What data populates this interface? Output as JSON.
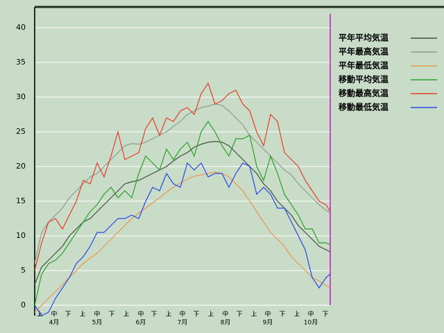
{
  "chart_data": {
    "type": "line",
    "x": [
      0,
      5,
      10,
      15,
      20,
      25,
      30,
      35,
      40,
      45,
      50,
      55,
      60,
      65,
      70,
      75,
      80,
      85,
      90,
      95,
      100,
      105,
      110,
      115,
      120,
      125,
      130,
      135,
      140,
      145,
      150,
      155,
      160,
      165,
      170,
      175,
      180,
      185,
      190,
      195,
      200,
      205,
      210,
      213
    ],
    "series": [
      {
        "name": "平年平均気温",
        "color": "#3c503c",
        "values": [
          3,
          5.5,
          6.5,
          7.5,
          8.5,
          10,
          11,
          12,
          12.5,
          13.5,
          14.5,
          15.5,
          16.5,
          17.5,
          17.8,
          18,
          18.5,
          19,
          19.5,
          20,
          20.8,
          21.5,
          22,
          22.8,
          23.2,
          23.5,
          23.6,
          23.5,
          23,
          22,
          21,
          20,
          19,
          17.5,
          16.5,
          15,
          14,
          13,
          11.5,
          10.5,
          9.5,
          8.5,
          8,
          7.7
        ]
      },
      {
        "name": "平年最高気温",
        "color": "#8c9c8c",
        "values": [
          6,
          10.5,
          12,
          13,
          14,
          15.5,
          16.5,
          17.5,
          18.5,
          19,
          20,
          21,
          22,
          23,
          23.3,
          23.2,
          23.5,
          24,
          24.5,
          25,
          25.8,
          26.5,
          27.5,
          28,
          28.5,
          28.7,
          29,
          28.8,
          28,
          27,
          26,
          24.5,
          23.5,
          22.5,
          21.5,
          20.5,
          19.5,
          18.8,
          17.5,
          16.5,
          15.5,
          14.5,
          13.7,
          13.3
        ]
      },
      {
        "name": "平年最低気温",
        "color": "#e69650",
        "values": [
          -1,
          0,
          1,
          2,
          3,
          4,
          5,
          6,
          6.8,
          7.5,
          8.5,
          9.5,
          10.5,
          11.5,
          12.5,
          13.3,
          14,
          14.8,
          15.5,
          16.3,
          17,
          17.6,
          18.2,
          18.6,
          18.8,
          19,
          19.2,
          19,
          18.5,
          17.5,
          16.5,
          15,
          13.5,
          12,
          10.5,
          9.5,
          8.5,
          7,
          6,
          5,
          4,
          3.5,
          2.8,
          2.5
        ]
      },
      {
        "name": "移動平均気温",
        "color": "#28a028",
        "values": [
          0,
          4.5,
          6,
          6.5,
          7.5,
          9,
          10.5,
          12,
          13.5,
          14.5,
          16,
          17,
          15.5,
          16.5,
          15.5,
          19,
          21.5,
          20.5,
          19.5,
          22.5,
          21,
          22.5,
          23.5,
          21.5,
          25,
          26.5,
          25,
          23,
          21.5,
          24,
          24,
          24.5,
          20,
          18,
          21.5,
          19,
          16,
          14.5,
          13,
          11,
          11,
          9,
          9,
          8.7
        ]
      },
      {
        "name": "移動最高気温",
        "color": "#e63c28",
        "values": [
          5,
          9,
          12,
          12.5,
          11,
          13,
          15,
          18,
          17.5,
          20.5,
          18.5,
          21.5,
          25,
          21,
          21.5,
          22,
          25.5,
          27,
          24.5,
          27,
          26.5,
          28,
          28.5,
          27.5,
          30.5,
          32,
          29,
          29.5,
          30.5,
          31,
          29,
          28,
          25,
          23,
          27.5,
          26.5,
          22,
          21,
          20,
          18,
          16.5,
          15,
          14.5,
          13.5
        ]
      },
      {
        "name": "移動最低気温",
        "color": "#2846e6",
        "values": [
          0,
          -1.5,
          -1,
          1,
          2.5,
          4,
          6,
          7,
          8.5,
          10.5,
          10.5,
          11.5,
          12.5,
          12.5,
          13,
          12.5,
          15,
          17,
          16.5,
          19,
          17.5,
          17,
          20.5,
          19.5,
          20.5,
          18.5,
          19,
          19,
          17,
          19,
          20.5,
          20,
          16,
          17,
          16,
          14,
          14,
          12,
          10,
          8,
          4,
          2.5,
          4,
          4.5
        ]
      }
    ],
    "xlim": [
      0,
      214
    ],
    "ylim": [
      -1.5,
      43
    ],
    "yticks": [
      0,
      5,
      10,
      15,
      20,
      25,
      30,
      35,
      40
    ],
    "xticks": [
      {
        "value": 3.5,
        "label": "上"
      },
      {
        "value": 14,
        "label": "中"
      },
      {
        "value": 24,
        "label": "下"
      },
      {
        "value": 34.5,
        "label": "上"
      },
      {
        "value": 45,
        "label": "中"
      },
      {
        "value": 55.5,
        "label": "下"
      },
      {
        "value": 66,
        "label": "上"
      },
      {
        "value": 76.5,
        "label": "中"
      },
      {
        "value": 86,
        "label": "下"
      },
      {
        "value": 96.5,
        "label": "上"
      },
      {
        "value": 106.5,
        "label": "中"
      },
      {
        "value": 116.5,
        "label": "下"
      },
      {
        "value": 127,
        "label": "上"
      },
      {
        "value": 137.5,
        "label": "中"
      },
      {
        "value": 147.5,
        "label": "下"
      },
      {
        "value": 158,
        "label": "上"
      },
      {
        "value": 168,
        "label": "中"
      },
      {
        "value": 178.5,
        "label": "下"
      },
      {
        "value": 189,
        "label": "上"
      },
      {
        "value": 199,
        "label": "中"
      },
      {
        "value": 209.5,
        "label": "下"
      }
    ],
    "month_ticks": [
      {
        "value": 14,
        "label": "4月"
      },
      {
        "value": 45,
        "label": "5月"
      },
      {
        "value": 76.5,
        "label": "6月"
      },
      {
        "value": 106.5,
        "label": "7月"
      },
      {
        "value": 137.5,
        "label": "8月"
      },
      {
        "value": 168,
        "label": "9月"
      },
      {
        "value": 199,
        "label": "10月"
      }
    ],
    "marker_x": 213,
    "marker_color": "#d040d0",
    "grid": true,
    "legend": "right"
  }
}
